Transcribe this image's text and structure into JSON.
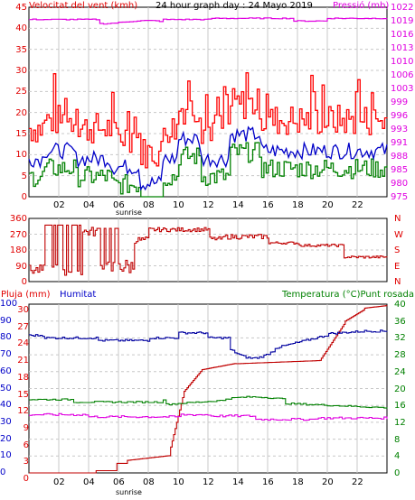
{
  "panel1": {
    "title_left": "Velocitat del vent (kmh)",
    "title_center": "24 hour graph day : 24 Mayo 2019",
    "title_right": "Pressió (mb)",
    "left_ticks": [
      "45",
      "40",
      "35",
      "30",
      "25",
      "20",
      "15",
      "10",
      "5",
      "0"
    ],
    "right_ticks": [
      "1022",
      "1019",
      "1016",
      "1013",
      "1010",
      "1006",
      "1003",
      "999",
      "996",
      "993",
      "991",
      "988",
      "985",
      "980",
      "975"
    ],
    "x_ticks": [
      "02",
      "04",
      "06",
      "08",
      "10",
      "12",
      "14",
      "16",
      "18",
      "20",
      "22"
    ],
    "sunrise_label": "sunrise"
  },
  "panel2": {
    "left_ticks": [
      "360",
      "270",
      "180",
      "90",
      "0"
    ],
    "compass": [
      "N",
      "W",
      "S",
      "E",
      "N"
    ]
  },
  "panel3": {
    "title_left1": "Pluja (mm)",
    "title_left2": "Humitat",
    "title_right": "Temperatura (°C)Punt rosada",
    "rain_ticks": [
      "30",
      "27",
      "24",
      "21",
      "18",
      "15",
      "12",
      "9",
      "6",
      "3",
      "0"
    ],
    "hum_ticks": [
      "100",
      "90",
      "80",
      "70",
      "60",
      "50",
      "40",
      "30",
      "20",
      "10",
      "0"
    ],
    "temp_ticks": [
      "40",
      "36",
      "32",
      "28",
      "24",
      "20",
      "16",
      "12",
      "8",
      "4",
      "0"
    ],
    "x_ticks": [
      "02",
      "04",
      "06",
      "08",
      "10",
      "12",
      "14",
      "16",
      "18",
      "20",
      "22"
    ],
    "sunrise_label": "sunrise"
  },
  "colors": {
    "wind_gust": "#ff0000",
    "wind_avg": "#0000c8",
    "wind_min": "#008000",
    "pressure": "#e000e0",
    "direction": "#c00000",
    "rain": "#c00000",
    "humidity": "#0000a0",
    "temperature": "#008000",
    "dew_point": "#e000e0",
    "grid": "#c8c8c8"
  }
}
